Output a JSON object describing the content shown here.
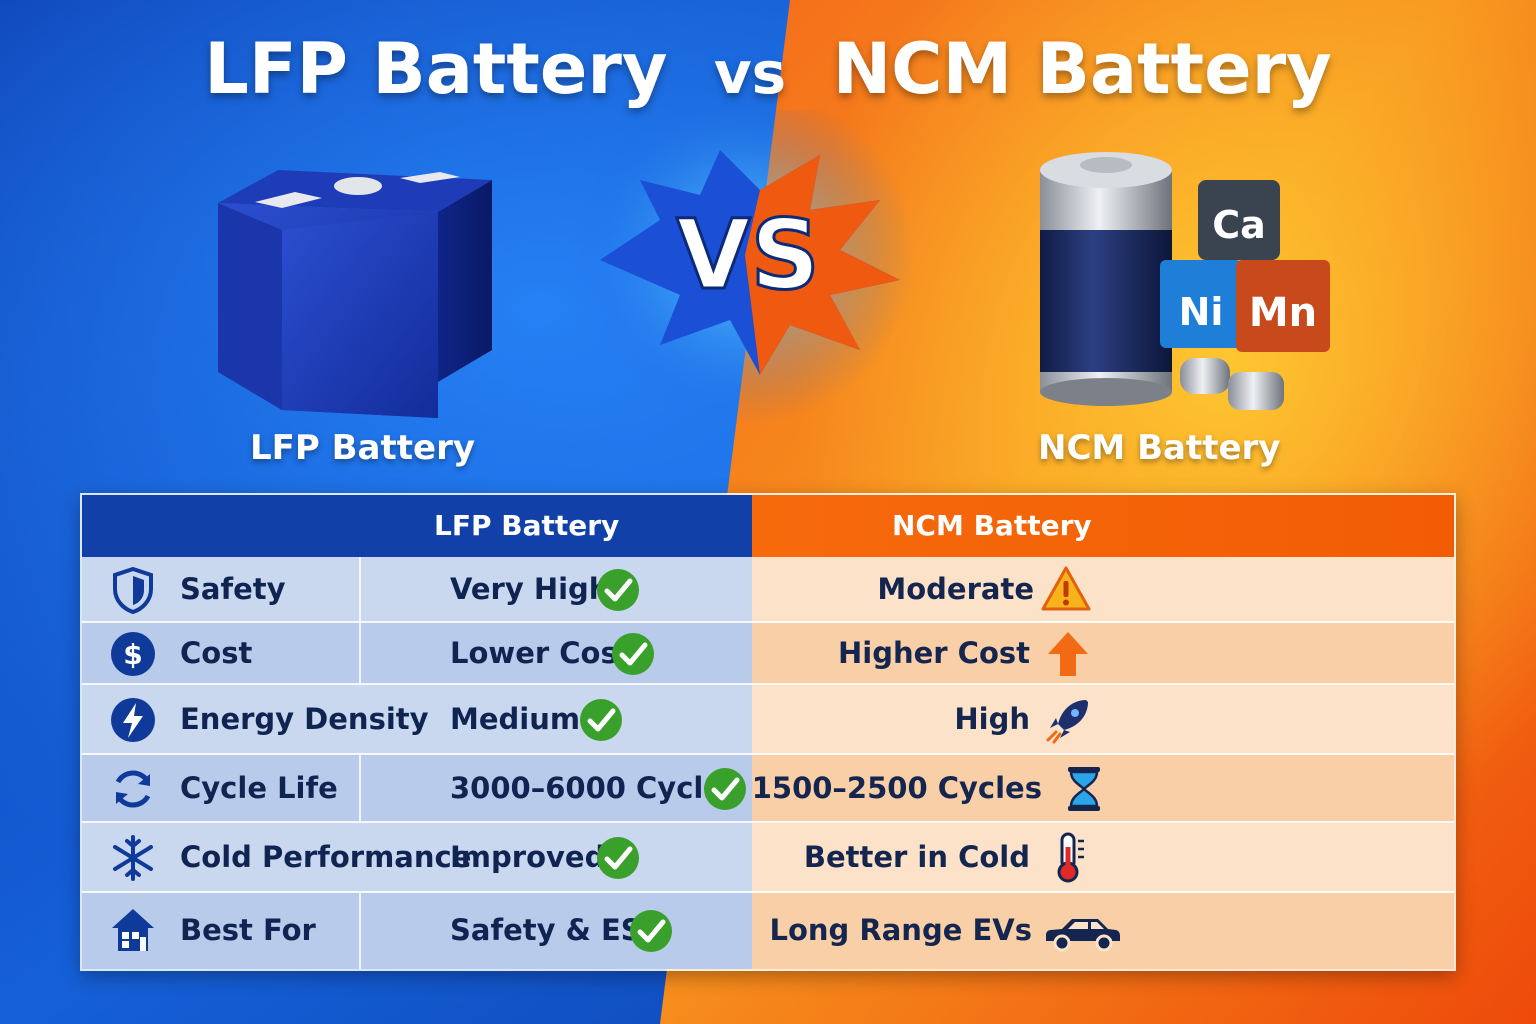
{
  "title": {
    "left": "LFP Battery",
    "vs": "vs",
    "right": "NCM Battery"
  },
  "hero": {
    "vs_badge": "VS",
    "lfp_caption": "LFP Battery",
    "ncm_caption": "NCM Battery",
    "element_blocks": [
      "Ca",
      "Ni",
      "Mn"
    ]
  },
  "table": {
    "headers": {
      "feature": "",
      "lfp": "LFP Battery",
      "ncm": "NCM Battery"
    },
    "rows": [
      {
        "feature": "Safety",
        "feature_icon": "shield-icon",
        "lfp": "Very High",
        "lfp_icon": "check-icon",
        "ncm": "Moderate",
        "ncm_icon": "warning-icon"
      },
      {
        "feature": "Cost",
        "feature_icon": "dollar-icon",
        "lfp": "Lower Cost",
        "lfp_icon": "check-icon",
        "ncm": "Higher Cost",
        "ncm_icon": "arrow-up-icon"
      },
      {
        "feature": "Energy Density",
        "feature_icon": "lightning-icon",
        "lfp": "Medium",
        "lfp_icon": "check-icon",
        "ncm": "High",
        "ncm_icon": "rocket-icon"
      },
      {
        "feature": "Cycle Life",
        "feature_icon": "cycle-icon",
        "lfp": "3000–6000 Cycles",
        "lfp_icon": "check-icon",
        "ncm": "1500–2500 Cycles",
        "ncm_icon": "hourglass-icon"
      },
      {
        "feature": "Cold Performance",
        "feature_icon": "snowflake-icon",
        "lfp": "Improved",
        "lfp_icon": "check-icon",
        "ncm": "Better in Cold",
        "ncm_icon": "thermometer-icon"
      },
      {
        "feature": "Best For",
        "feature_icon": "home-icon",
        "lfp": "Safety & ESS",
        "lfp_icon": "check-icon",
        "ncm": "Long Range EVs",
        "ncm_icon": "car-icon"
      }
    ]
  },
  "colors": {
    "lfp_blue": "#1140a8",
    "ncm_orange": "#f2640a",
    "check_green": "#3aa02c",
    "text_navy": "#102452"
  }
}
